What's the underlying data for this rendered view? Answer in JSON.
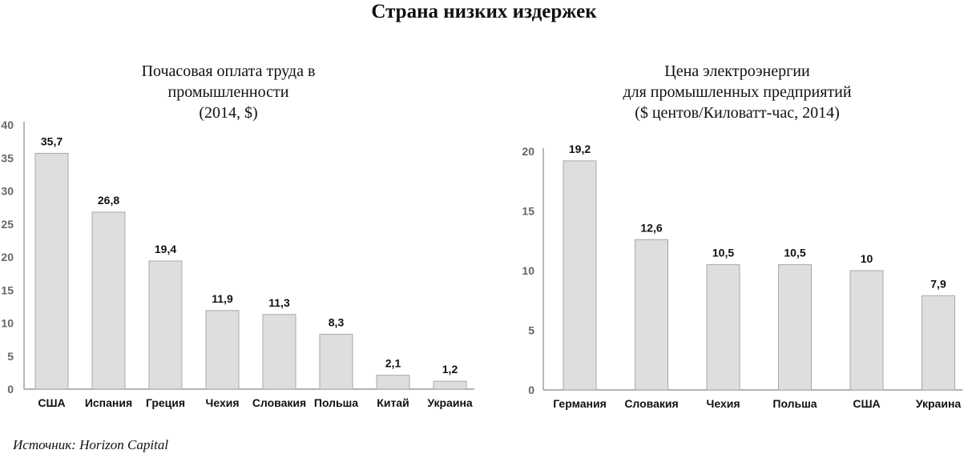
{
  "title": "Страна низких издержек",
  "source": "Источник: Horizon Capital",
  "chart_data": [
    {
      "type": "bar",
      "title_lines": [
        "Почасовая оплата труда в",
        "промышленности",
        "(2014, $)"
      ],
      "categories": [
        "США",
        "Испания",
        "Греция",
        "Чехия",
        "Словакия",
        "Польша",
        "Китай",
        "Украина"
      ],
      "values": [
        35.7,
        26.8,
        19.4,
        11.9,
        11.3,
        8.3,
        2.1,
        1.2
      ],
      "value_labels": [
        "35,7",
        "26,8",
        "19,4",
        "11,9",
        "11,3",
        "8,3",
        "2,1",
        "1,2"
      ],
      "y_ticks": [
        0,
        5,
        10,
        15,
        20,
        25,
        30,
        35,
        40
      ],
      "ylim": [
        0,
        40
      ],
      "grid": false,
      "bar_color": "#dedede"
    },
    {
      "type": "bar",
      "title_lines": [
        "Цена электроэнергии",
        "для промышленных предприятий",
        "($ центов/Киловатт-час, 2014)"
      ],
      "categories": [
        "Германия",
        "Словакия",
        "Чехия",
        "Польша",
        "США",
        "Украина"
      ],
      "values": [
        19.2,
        12.6,
        10.5,
        10.5,
        10,
        7.9
      ],
      "value_labels": [
        "19,2",
        "12,6",
        "10,5",
        "10,5",
        "10",
        "7,9"
      ],
      "y_ticks": [
        0,
        5,
        10,
        15,
        20
      ],
      "ylim": [
        0,
        20
      ],
      "grid": false,
      "bar_color": "#dedede"
    }
  ]
}
